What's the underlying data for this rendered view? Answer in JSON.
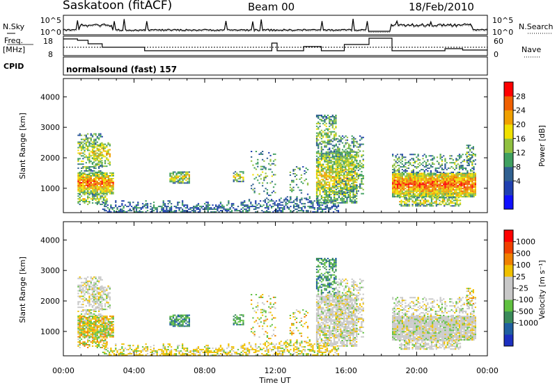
{
  "header": {
    "title": "Saskatoon (fitACF)",
    "beam": "Beam 00",
    "date": "18/Feb/2010"
  },
  "params": {
    "nsky_label": "N.Sky",
    "nsearch_label": "N.Search",
    "freq_label_1": "Freq.",
    "freq_label_2": "[MHz]",
    "nave_label": "Nave",
    "cpid_label": "CPID",
    "cpid_value": "normalsound (fast) 157",
    "noise_ticks": [
      "10^5",
      "10^0"
    ],
    "noise_right_ticks": [
      "10^5",
      "10^0"
    ],
    "freq_ticks": [
      "18",
      "8"
    ],
    "nave_ticks": [
      "60",
      "0"
    ]
  },
  "colorbars": {
    "power": {
      "label": "Power [dB]",
      "ticks": [
        "28",
        "24",
        "20",
        "16",
        "12",
        "8",
        "4"
      ],
      "colors": [
        "#1010ff",
        "#2040b0",
        "#306090",
        "#40a060",
        "#90c040",
        "#f0e000",
        "#f0a000",
        "#f06000",
        "#ff0000"
      ]
    },
    "velocity": {
      "label": "Velocity [m s⁻¹]",
      "ticks": [
        "1000",
        "500",
        "100",
        "25",
        "-25",
        "-100",
        "-500",
        "-1000"
      ],
      "colors": [
        "#1c30c0",
        "#2060a0",
        "#3a8a5a",
        "#60c040",
        "#c8c8c8",
        "#c8c8c8",
        "#f0c000",
        "#f08000",
        "#f04000",
        "#ff0000"
      ]
    }
  },
  "axes": {
    "ylabel": "Slant Range [km]",
    "xlabel": "Time UT",
    "y_ticks": [
      "4000",
      "3000",
      "2000",
      "1000"
    ],
    "x_ticks": [
      "00:00",
      "04:00",
      "08:00",
      "12:00",
      "16:00",
      "20:00",
      "00:00"
    ]
  },
  "chart_data": {
    "type": "heatmap",
    "title": "Saskatoon (fitACF)",
    "xlabel": "Time UT",
    "ylabel": "Slant Range [km]",
    "xlim_hours": [
      0,
      24
    ],
    "ylim_km": [
      200,
      4600
    ],
    "panels": [
      "power",
      "velocity"
    ],
    "power_scale_db": [
      0,
      30
    ],
    "velocity_scale": [
      -1000,
      1000
    ],
    "frequency_mhz_range": [
      8,
      18
    ],
    "nave_range": [
      0,
      60
    ],
    "noise_scale": [
      "10^0",
      "10^5"
    ]
  }
}
